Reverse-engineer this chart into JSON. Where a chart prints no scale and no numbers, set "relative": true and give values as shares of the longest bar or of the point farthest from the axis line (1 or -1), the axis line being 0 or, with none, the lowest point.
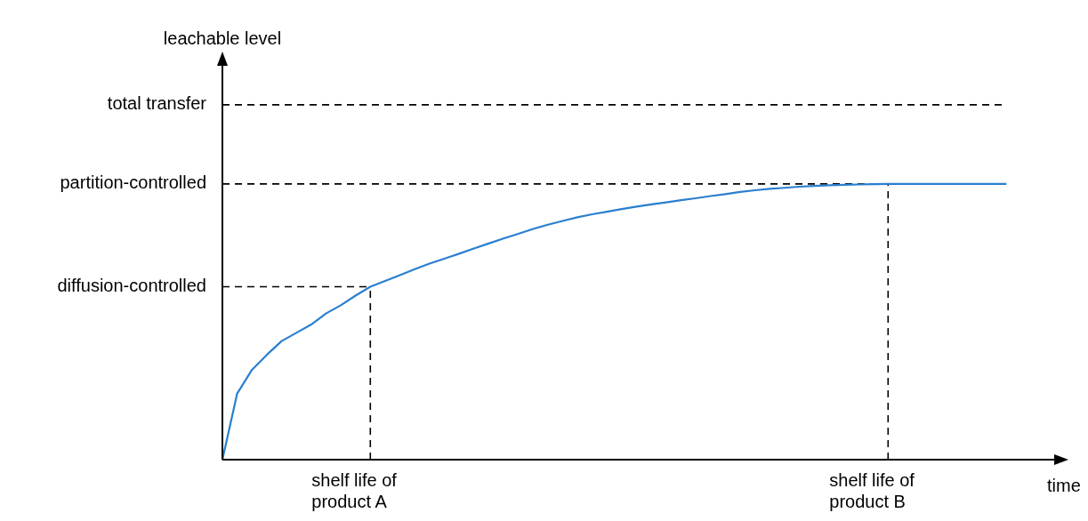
{
  "chart_data": {
    "type": "line",
    "relative": true,
    "xlabel": "time",
    "marker": "none",
    "line_style": "solid",
    "legend": false,
    "grid": false,
    "categories": [
      null,
      null,
      null,
      null,
      null,
      null,
      null,
      null,
      null,
      null,
      null,
      null,
      null,
      null,
      null,
      null,
      null,
      null,
      null,
      null,
      null,
      null,
      null,
      null,
      null,
      null,
      null,
      null,
      null,
      null,
      null,
      null,
      null,
      null,
      null,
      null,
      null,
      null,
      null,
      null,
      null,
      null,
      null,
      null,
      null,
      null,
      null,
      null,
      null,
      null,
      null,
      null,
      null,
      null
    ],
    "series": [
      {
        "color": "#2a7fcf",
        "values": [
          0,
          0.24,
          0.326,
          0.38,
          0.43,
          0.46,
          0.49,
          0.53,
          0.56,
          0.595,
          0.627,
          0.648,
          0.669,
          0.691,
          0.711,
          0.729,
          0.747,
          0.766,
          0.784,
          0.802,
          0.819,
          0.837,
          0.852,
          0.866,
          0.879,
          0.89,
          0.899,
          0.909,
          0.918,
          0.926,
          0.933,
          0.941,
          0.948,
          0.956,
          0.963,
          0.971,
          0.977,
          0.982,
          0.986,
          0.99,
          0.993,
          0.995,
          0.997,
          0.998,
          0.999,
          1,
          1,
          1,
          1,
          1,
          1,
          1,
          1,
          1
        ]
      }
    ],
    "ref_lines": [
      {
        "axis": "y",
        "value": 1.287,
        "label": "total transfer",
        "line_style": "dashed",
        "color": "#000000"
      },
      {
        "axis": "y",
        "value": 1,
        "label": "partition-controlled",
        "line_style": "dashed",
        "color": "#000000"
      },
      {
        "axis": "y",
        "value": 0.627,
        "label": "diffusion-controlled",
        "line_style": "dashed",
        "color": "#000000"
      }
    ],
    "annotations": [
      "shelf life of product A",
      "shelf life of product B",
      "leachable level"
    ]
  }
}
